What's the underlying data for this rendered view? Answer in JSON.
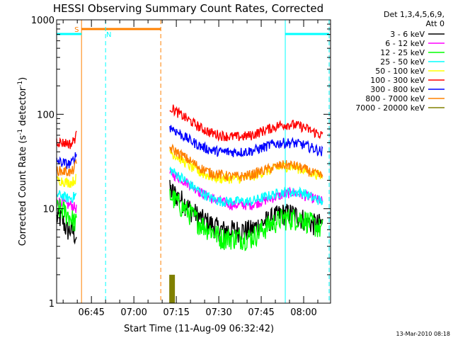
{
  "chart_data": {
    "type": "line",
    "title": "HESSI Observing Summary Count Rates, Corrected",
    "xlabel": "Start Time (11-Aug-09 06:32:42)",
    "ylabel_main": "Corrected Count Rate (s",
    "ylabel_sup1": "-1",
    "ylabel_mid": " detector",
    "ylabel_sup2": "-1",
    "ylabel_end": ")",
    "y_scale": "log",
    "ylim": [
      1,
      1000
    ],
    "xlim": [
      "06:32:42",
      "08:09:30"
    ],
    "x_ticks": [
      "06:45",
      "07:00",
      "07:15",
      "07:30",
      "07:45",
      "08:00"
    ],
    "y_ticks": [
      "1",
      "10",
      "100",
      "1000"
    ],
    "legend_header": [
      "Det 1,3,4,5,6,9,",
      "Att 0"
    ],
    "legend_placement": "right",
    "timestamp": "13-Mar-2010 08:18",
    "flags": [
      {
        "label": "S",
        "color": "#ff8000",
        "start": "06:41:30",
        "end": "07:09:30",
        "solid_line_at": "06:41:30",
        "dashed_line_at": "07:09:30"
      },
      {
        "label": "N",
        "color": "#00ffff",
        "start": "06:32:42",
        "end": "06:41:30",
        "solid_line_at": "06:32:42",
        "dashed_line_at": "06:50:00"
      },
      {
        "label": "",
        "color": "#00ffff",
        "start": "07:53:30",
        "end": "08:09:00",
        "solid_line_at": "07:53:30",
        "dashed_line_at": "08:09:00"
      }
    ],
    "attenuator_bar": {
      "start": "07:12:30",
      "end": "07:14:30",
      "value": 2.0,
      "color": "#808000"
    },
    "series": [
      {
        "name": "3 - 6 keV",
        "color": "#000000",
        "pre": [
          8,
          8,
          6,
          6,
          5
        ],
        "post": [
          16,
          13,
          10,
          8,
          7,
          6,
          6,
          6,
          6,
          7,
          8,
          9,
          9,
          8,
          7,
          7
        ]
      },
      {
        "name": "6 - 12 keV",
        "color": "#ff00ff",
        "pre": [
          12,
          12,
          11,
          11,
          10
        ],
        "post": [
          24,
          21,
          18,
          15,
          13,
          12,
          11,
          11,
          11,
          12,
          13,
          14,
          15,
          14,
          13,
          12
        ]
      },
      {
        "name": "12 - 25 keV",
        "color": "#00ff00",
        "pre": [
          10,
          10,
          9,
          8,
          7
        ],
        "post": [
          14,
          11,
          9,
          7,
          6,
          5,
          5,
          5,
          5,
          6,
          7,
          8,
          8,
          8,
          7,
          6
        ]
      },
      {
        "name": "25 - 50 keV",
        "color": "#00ffff",
        "pre": [
          14,
          14,
          13,
          13,
          14
        ],
        "post": [
          26,
          22,
          18,
          15,
          13,
          12,
          12,
          12,
          12,
          13,
          14,
          15,
          15,
          15,
          13,
          12
        ]
      },
      {
        "name": "50 - 100 keV",
        "color": "#ffff00",
        "pre": [
          20,
          20,
          19,
          19,
          21
        ],
        "post": [
          40,
          34,
          28,
          24,
          22,
          21,
          21,
          21,
          22,
          24,
          26,
          28,
          28,
          26,
          24,
          22
        ]
      },
      {
        "name": "100 - 300 keV",
        "color": "#ff0000",
        "pre": [
          52,
          50,
          50,
          48,
          60
        ],
        "post": [
          120,
          100,
          85,
          72,
          64,
          60,
          58,
          58,
          60,
          66,
          72,
          78,
          78,
          74,
          66,
          60
        ]
      },
      {
        "name": "300 - 800 keV",
        "color": "#0000ff",
        "pre": [
          32,
          31,
          30,
          30,
          38
        ],
        "post": [
          74,
          62,
          53,
          46,
          42,
          40,
          40,
          40,
          41,
          44,
          48,
          50,
          50,
          48,
          44,
          40
        ]
      },
      {
        "name": "800 - 7000 keV",
        "color": "#ff8000",
        "pre": [
          26,
          25,
          25,
          24,
          30
        ],
        "post": [
          44,
          38,
          32,
          27,
          24,
          23,
          22,
          22,
          23,
          25,
          27,
          29,
          29,
          27,
          24,
          22
        ]
      },
      {
        "name": "7000 - 20000 keV",
        "color": "#808000",
        "pre": [],
        "post": []
      }
    ],
    "segments_minutes": {
      "pre": [
        0,
        7
      ],
      "post": [
        40,
        94
      ]
    }
  }
}
